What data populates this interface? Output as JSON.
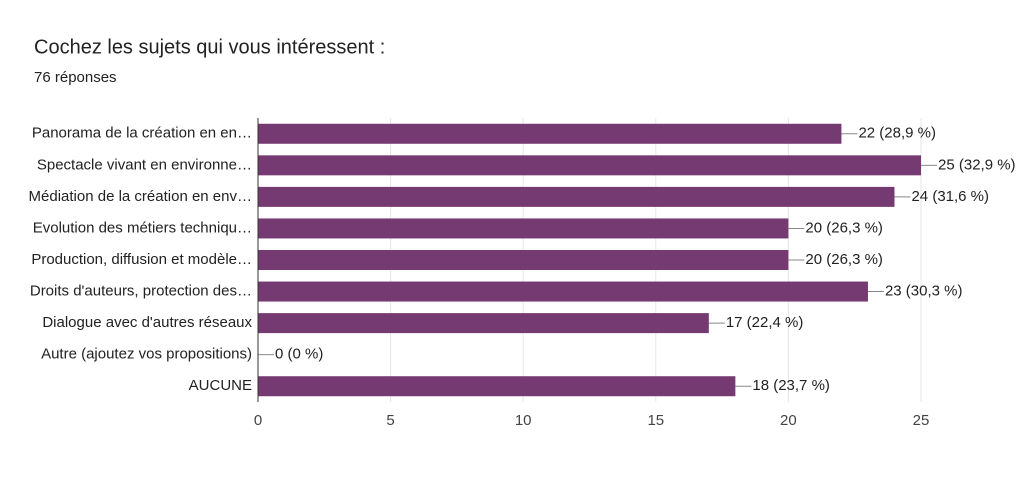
{
  "chart_data": {
    "type": "bar",
    "horizontal": true,
    "title": "Cochez les sujets qui vous intéressent :",
    "subtitle": "76 réponses",
    "categories": [
      "Panorama de la création en en…",
      "Spectacle vivant en environne…",
      "Médiation de la création en env…",
      "Evolution des métiers techniqu…",
      "Production, diffusion et modèle…",
      "Droits d'auteurs, protection des…",
      "Dialogue avec d'autres réseaux",
      "Autre (ajoutez vos propositions)",
      "AUCUNE"
    ],
    "values": [
      22,
      25,
      24,
      20,
      20,
      23,
      17,
      0,
      18
    ],
    "value_labels": [
      "22 (28,9 %)",
      "25 (32,9 %)",
      "24 (31,6 %)",
      "20 (26,3 %)",
      "20 (26,3 %)",
      "23 (30,3 %)",
      "17 (22,4 %)",
      "0 (0 %)",
      "18 (23,7 %)"
    ],
    "color": "#763a73",
    "xlim": [
      0,
      25
    ],
    "xticks": [
      0,
      5,
      10,
      15,
      20,
      25
    ],
    "grid": true
  }
}
